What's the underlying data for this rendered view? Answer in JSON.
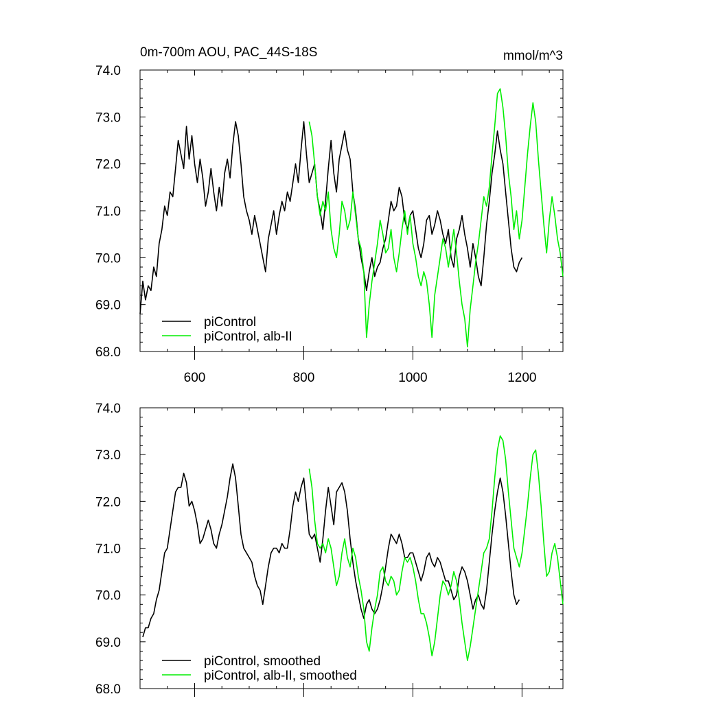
{
  "chart_data": [
    {
      "type": "line",
      "title": "0m-700m AOU, PAC_44S-18S",
      "units": "mmol/m^3",
      "xlim": [
        500,
        1275
      ],
      "ylim": [
        68,
        74
      ],
      "xticks": [
        600,
        800,
        1000,
        1200
      ],
      "xtick_labels": [
        "600",
        "800",
        "1000",
        "1200"
      ],
      "yticks": [
        68,
        69,
        70,
        71,
        72,
        73,
        74
      ],
      "ytick_labels": [
        "68.0",
        "69.0",
        "70.0",
        "71.0",
        "72.0",
        "73.0",
        "74.0"
      ],
      "legend": "bottom-left",
      "series": [
        {
          "name": "piControl",
          "color": "#000000",
          "x": [
            500,
            505,
            510,
            515,
            520,
            525,
            530,
            535,
            540,
            545,
            550,
            555,
            560,
            565,
            570,
            575,
            580,
            585,
            590,
            595,
            600,
            605,
            610,
            615,
            620,
            625,
            630,
            635,
            640,
            645,
            650,
            655,
            660,
            665,
            670,
            675,
            680,
            685,
            690,
            695,
            700,
            705,
            710,
            715,
            720,
            725,
            730,
            735,
            740,
            745,
            750,
            755,
            760,
            765,
            770,
            775,
            780,
            785,
            790,
            795,
            800,
            805,
            810,
            815,
            820,
            825,
            830,
            835,
            840,
            845,
            850,
            855,
            860,
            865,
            870,
            875,
            880,
            885,
            890,
            895,
            900,
            905,
            910,
            915,
            920,
            925,
            930,
            935,
            940,
            945,
            950,
            955,
            960,
            965,
            970,
            975,
            980,
            985,
            990,
            995,
            1000,
            1005,
            1010,
            1015,
            1020,
            1025,
            1030,
            1035,
            1040,
            1045,
            1050,
            1055,
            1060,
            1065,
            1070,
            1075,
            1080,
            1085,
            1090,
            1095,
            1100,
            1105,
            1110,
            1115,
            1120,
            1125,
            1130,
            1135,
            1140,
            1145,
            1150,
            1155,
            1160,
            1165,
            1170,
            1175,
            1180,
            1185,
            1190,
            1195,
            1200
          ],
          "y": [
            68.8,
            69.5,
            69.1,
            69.4,
            69.3,
            69.8,
            69.6,
            70.3,
            70.6,
            71.1,
            70.9,
            71.4,
            71.3,
            71.9,
            72.5,
            72.2,
            71.9,
            72.8,
            72.1,
            72.6,
            72.0,
            71.6,
            72.1,
            71.7,
            71.1,
            71.4,
            71.9,
            71.4,
            71.0,
            71.5,
            71.1,
            71.8,
            72.1,
            71.7,
            72.4,
            72.9,
            72.6,
            72.0,
            71.3,
            71.0,
            70.8,
            70.5,
            70.9,
            70.6,
            70.3,
            70.0,
            69.7,
            70.4,
            70.7,
            71.0,
            70.5,
            70.9,
            71.2,
            71.0,
            71.4,
            71.2,
            71.6,
            72.0,
            71.6,
            72.3,
            72.9,
            72.2,
            71.6,
            71.8,
            72.0,
            71.3,
            71.0,
            70.6,
            71.2,
            71.9,
            72.5,
            71.8,
            71.4,
            72.1,
            72.4,
            72.7,
            72.3,
            72.1,
            71.4,
            71.0,
            70.4,
            70.0,
            69.7,
            69.3,
            69.7,
            70.0,
            69.6,
            69.8,
            69.9,
            70.2,
            70.4,
            70.8,
            71.2,
            71.0,
            71.1,
            71.5,
            71.3,
            70.8,
            70.6,
            70.9,
            71.0,
            70.6,
            70.2,
            70.0,
            70.3,
            70.8,
            70.9,
            70.5,
            70.7,
            71.0,
            70.8,
            70.5,
            70.3,
            70.6,
            70.0,
            69.8,
            70.4,
            70.6,
            70.9,
            70.5,
            70.2,
            69.8,
            70.3,
            70.0,
            69.6,
            69.4,
            70.0,
            70.7,
            71.2,
            71.8,
            72.2,
            72.7,
            72.3,
            72.0,
            71.4,
            70.8,
            70.2,
            69.8,
            69.7,
            69.9,
            70.0
          ]
        },
        {
          "name": "piControl, alb-II",
          "color": "#00ee00",
          "x": [
            810,
            815,
            820,
            825,
            830,
            835,
            840,
            845,
            850,
            855,
            860,
            865,
            870,
            875,
            880,
            885,
            890,
            895,
            900,
            905,
            910,
            915,
            920,
            925,
            930,
            935,
            940,
            945,
            950,
            955,
            960,
            965,
            970,
            975,
            980,
            985,
            990,
            995,
            1000,
            1005,
            1010,
            1015,
            1020,
            1025,
            1030,
            1035,
            1040,
            1045,
            1050,
            1055,
            1060,
            1065,
            1070,
            1075,
            1080,
            1085,
            1090,
            1095,
            1100,
            1105,
            1110,
            1115,
            1120,
            1125,
            1130,
            1135,
            1140,
            1145,
            1150,
            1155,
            1160,
            1165,
            1170,
            1175,
            1180,
            1185,
            1190,
            1195,
            1200,
            1205,
            1210,
            1215,
            1220,
            1225,
            1230,
            1235,
            1240,
            1245,
            1250,
            1255,
            1260,
            1265,
            1270,
            1275
          ],
          "y": [
            72.9,
            72.6,
            72.0,
            71.3,
            70.9,
            71.2,
            71.0,
            71.4,
            70.6,
            70.2,
            70.0,
            70.5,
            71.2,
            71.0,
            70.6,
            70.8,
            71.4,
            70.9,
            70.4,
            70.2,
            69.7,
            68.3,
            69.0,
            69.5,
            69.9,
            70.3,
            70.8,
            70.5,
            70.1,
            70.2,
            70.6,
            70.0,
            69.7,
            70.1,
            70.6,
            71.0,
            70.5,
            70.9,
            70.3,
            70.0,
            69.6,
            69.4,
            69.7,
            69.5,
            69.0,
            68.3,
            69.2,
            69.6,
            70.0,
            70.4,
            70.2,
            69.8,
            70.2,
            70.6,
            70.1,
            69.5,
            69.0,
            68.7,
            68.1,
            68.9,
            69.4,
            69.9,
            70.3,
            70.8,
            71.3,
            71.1,
            71.5,
            72.2,
            72.8,
            73.5,
            73.6,
            73.2,
            72.6,
            71.8,
            71.3,
            70.6,
            71.0,
            70.4,
            70.8,
            71.5,
            72.2,
            72.8,
            73.3,
            72.9,
            72.1,
            71.4,
            70.7,
            70.1,
            70.8,
            71.3,
            70.9,
            70.4,
            70.1,
            69.6
          ]
        }
      ]
    },
    {
      "type": "line",
      "xlim": [
        500,
        1275
      ],
      "ylim": [
        68,
        74
      ],
      "xticks": [
        600,
        800,
        1000,
        1200
      ],
      "yticks": [
        68,
        69,
        70,
        71,
        72,
        73,
        74
      ],
      "ytick_labels": [
        "68.0",
        "69.0",
        "70.0",
        "71.0",
        "72.0",
        "73.0",
        "74.0"
      ],
      "legend": "bottom-left",
      "series": [
        {
          "name": "piControl, smoothed",
          "color": "#000000",
          "x": [
            505,
            510,
            515,
            520,
            525,
            530,
            535,
            540,
            545,
            550,
            555,
            560,
            565,
            570,
            575,
            580,
            585,
            590,
            595,
            600,
            605,
            610,
            615,
            620,
            625,
            630,
            635,
            640,
            645,
            650,
            655,
            660,
            665,
            670,
            675,
            680,
            685,
            690,
            695,
            700,
            705,
            710,
            715,
            720,
            725,
            730,
            735,
            740,
            745,
            750,
            755,
            760,
            765,
            770,
            775,
            780,
            785,
            790,
            795,
            800,
            805,
            810,
            815,
            820,
            825,
            830,
            835,
            840,
            845,
            850,
            855,
            860,
            865,
            870,
            875,
            880,
            885,
            890,
            895,
            900,
            905,
            910,
            915,
            920,
            925,
            930,
            935,
            940,
            945,
            950,
            955,
            960,
            965,
            970,
            975,
            980,
            985,
            990,
            995,
            1000,
            1005,
            1010,
            1015,
            1020,
            1025,
            1030,
            1035,
            1040,
            1045,
            1050,
            1055,
            1060,
            1065,
            1070,
            1075,
            1080,
            1085,
            1090,
            1095,
            1100,
            1105,
            1110,
            1115,
            1120,
            1125,
            1130,
            1135,
            1140,
            1145,
            1150,
            1155,
            1160,
            1165,
            1170,
            1175,
            1180,
            1185,
            1190,
            1195
          ],
          "y": [
            69.1,
            69.3,
            69.3,
            69.5,
            69.6,
            69.9,
            70.1,
            70.5,
            70.9,
            71.0,
            71.4,
            71.8,
            72.2,
            72.3,
            72.3,
            72.6,
            72.4,
            71.9,
            72.0,
            71.8,
            71.5,
            71.1,
            71.2,
            71.4,
            71.6,
            71.4,
            71.1,
            71.0,
            71.3,
            71.5,
            71.8,
            72.1,
            72.5,
            72.8,
            72.5,
            71.9,
            71.3,
            71.0,
            70.9,
            70.8,
            70.7,
            70.4,
            70.2,
            70.1,
            69.8,
            70.2,
            70.6,
            70.9,
            71.0,
            71.0,
            70.9,
            71.1,
            71.0,
            71.0,
            71.4,
            71.9,
            72.2,
            72.0,
            72.3,
            72.5,
            71.9,
            71.3,
            71.2,
            71.3,
            71.0,
            70.7,
            71.2,
            71.8,
            72.3,
            71.9,
            71.5,
            72.2,
            72.3,
            72.4,
            72.2,
            71.8,
            71.2,
            70.7,
            70.3,
            70.0,
            69.7,
            69.5,
            69.8,
            69.9,
            69.7,
            69.6,
            69.7,
            69.9,
            70.2,
            70.6,
            71.0,
            71.3,
            71.2,
            71.1,
            71.3,
            71.1,
            70.8,
            70.8,
            70.9,
            70.9,
            70.7,
            70.5,
            70.3,
            70.5,
            70.8,
            70.9,
            70.7,
            70.6,
            70.8,
            70.7,
            70.5,
            70.3,
            70.3,
            70.1,
            69.9,
            70.0,
            70.4,
            70.6,
            70.5,
            70.3,
            70.0,
            69.7,
            69.9,
            70.0,
            69.8,
            69.7,
            70.1,
            70.7,
            71.3,
            71.8,
            72.2,
            72.5,
            72.2,
            71.7,
            71.1,
            70.5,
            70.0,
            69.8,
            69.9
          ]
        },
        {
          "name": "piControl, alb-II, smoothed",
          "color": "#00ee00",
          "x": [
            810,
            815,
            820,
            825,
            830,
            835,
            840,
            845,
            850,
            855,
            860,
            865,
            870,
            875,
            880,
            885,
            890,
            895,
            900,
            905,
            910,
            915,
            920,
            925,
            930,
            935,
            940,
            945,
            950,
            955,
            960,
            965,
            970,
            975,
            980,
            985,
            990,
            995,
            1000,
            1005,
            1010,
            1015,
            1020,
            1025,
            1030,
            1035,
            1040,
            1045,
            1050,
            1055,
            1060,
            1065,
            1070,
            1075,
            1080,
            1085,
            1090,
            1095,
            1100,
            1105,
            1110,
            1115,
            1120,
            1125,
            1130,
            1135,
            1140,
            1145,
            1150,
            1155,
            1160,
            1165,
            1170,
            1175,
            1180,
            1185,
            1190,
            1195,
            1200,
            1205,
            1210,
            1215,
            1220,
            1225,
            1230,
            1235,
            1240,
            1245,
            1250,
            1255,
            1260,
            1265,
            1270,
            1275
          ],
          "y": [
            72.7,
            72.3,
            71.6,
            71.1,
            71.0,
            71.1,
            70.9,
            71.2,
            71.0,
            70.6,
            70.2,
            70.4,
            70.9,
            71.2,
            70.8,
            70.6,
            71.0,
            70.8,
            70.4,
            70.1,
            69.7,
            69.0,
            68.8,
            69.3,
            69.7,
            70.0,
            70.5,
            70.6,
            70.3,
            70.2,
            70.4,
            70.3,
            70.0,
            70.1,
            70.5,
            70.8,
            70.7,
            70.8,
            70.6,
            70.3,
            69.9,
            69.6,
            69.6,
            69.4,
            69.1,
            68.7,
            69.0,
            69.5,
            70.0,
            70.3,
            70.2,
            70.0,
            70.2,
            70.5,
            70.3,
            69.9,
            69.4,
            69.0,
            68.6,
            68.9,
            69.3,
            69.7,
            70.1,
            70.5,
            70.9,
            71.0,
            71.2,
            71.8,
            72.5,
            73.1,
            73.4,
            73.3,
            72.9,
            72.2,
            71.6,
            71.0,
            70.8,
            70.6,
            70.9,
            71.4,
            71.9,
            72.5,
            73.0,
            73.1,
            72.6,
            71.9,
            71.1,
            70.4,
            70.5,
            70.9,
            71.1,
            70.8,
            70.3,
            69.8
          ]
        }
      ]
    }
  ]
}
